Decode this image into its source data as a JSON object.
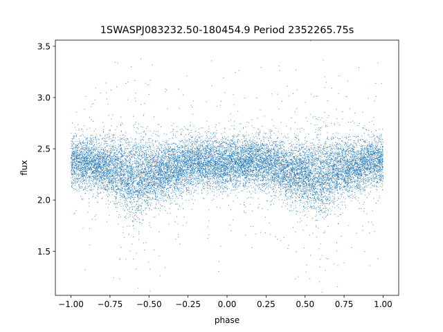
{
  "chart_data": {
    "type": "scatter",
    "title": "1SWASPJ083232.50-180454.9 Period 2352265.75s",
    "xlabel": "phase",
    "ylabel": "flux",
    "xlim": [
      -1.1,
      1.1
    ],
    "ylim": [
      1.07,
      3.56
    ],
    "xticks": [
      -1.0,
      -0.75,
      -0.5,
      -0.25,
      0.0,
      0.25,
      0.5,
      0.75,
      1.0
    ],
    "xtick_labels": [
      "−1.00",
      "−0.75",
      "−0.50",
      "−0.25",
      "0.00",
      "0.25",
      "0.50",
      "0.75",
      "1.00"
    ],
    "yticks": [
      1.5,
      2.0,
      2.5,
      3.0,
      3.5
    ],
    "ytick_labels": [
      "1.5",
      "2.0",
      "2.5",
      "3.0",
      "3.5"
    ],
    "marker_color": "#1f77b4",
    "grid": false,
    "legend": "none",
    "series": [
      {
        "phase_range": [
          -1.0,
          1.0
        ],
        "symmetric_about_phase": 0.0,
        "approx_points": 16000,
        "profile": [
          {
            "x": 0.0,
            "y_median": 2.36,
            "y_spread": 0.12
          },
          {
            "x": 0.1,
            "y_median": 2.37,
            "y_spread": 0.12
          },
          {
            "x": 0.2,
            "y_median": 2.37,
            "y_spread": 0.12
          },
          {
            "x": 0.3,
            "y_median": 2.34,
            "y_spread": 0.13
          },
          {
            "x": 0.4,
            "y_median": 2.28,
            "y_spread": 0.14
          },
          {
            "x": 0.5,
            "y_median": 2.25,
            "y_spread": 0.16
          },
          {
            "x": 0.6,
            "y_median": 2.22,
            "y_spread": 0.2
          },
          {
            "x": 0.7,
            "y_median": 2.28,
            "y_spread": 0.16
          },
          {
            "x": 0.8,
            "y_median": 2.33,
            "y_spread": 0.12
          },
          {
            "x": 0.9,
            "y_median": 2.36,
            "y_spread": 0.12
          },
          {
            "x": 1.0,
            "y_median": 2.38,
            "y_spread": 0.12
          }
        ]
      }
    ]
  }
}
